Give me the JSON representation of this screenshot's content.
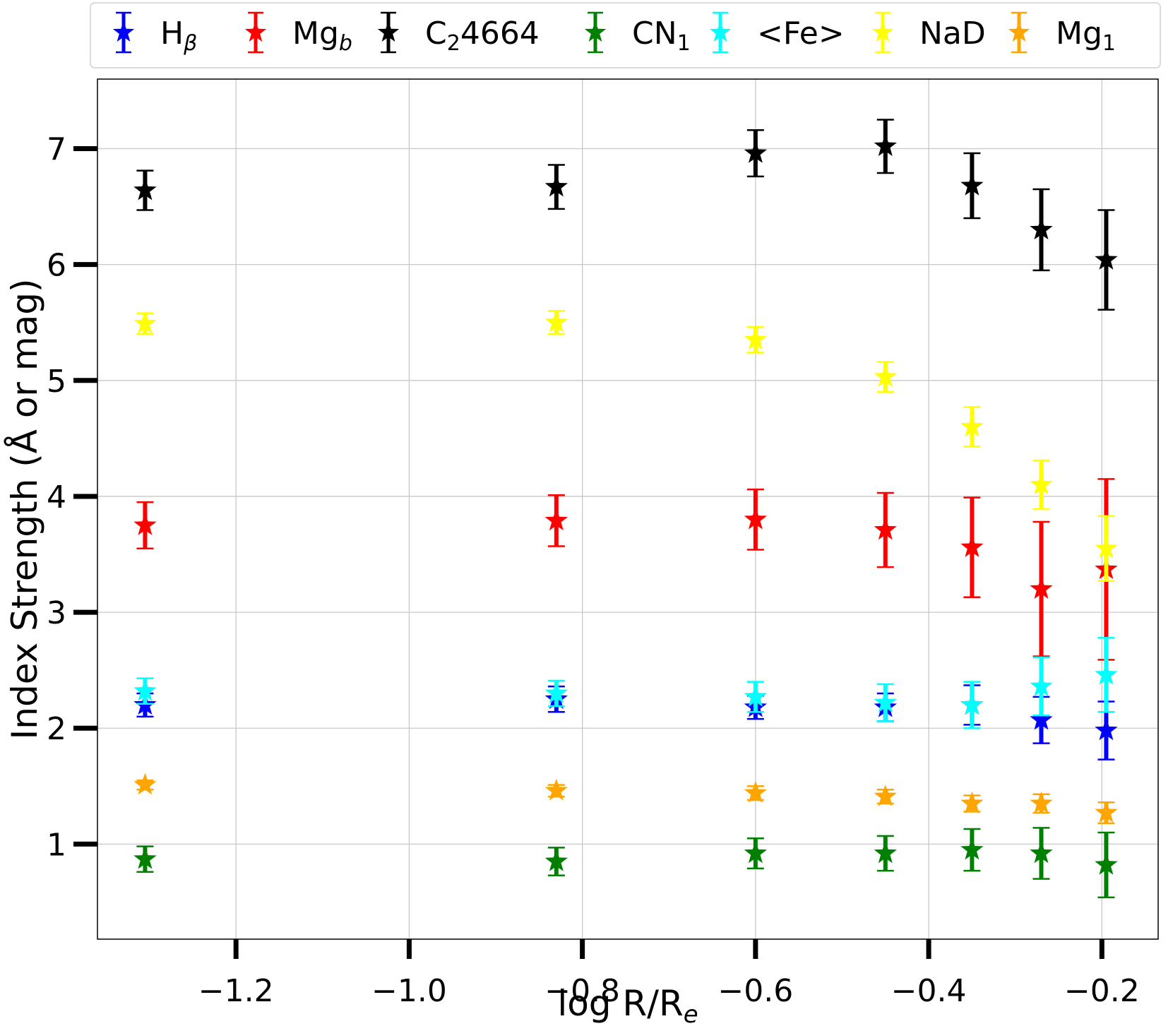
{
  "chart_data": {
    "type": "scatter",
    "xlabel": "log R/R_e",
    "ylabel": "Index Strength (Å or mag)",
    "xlim": [
      -1.36,
      -0.135
    ],
    "ylim": [
      0.18,
      7.6
    ],
    "xticks": [
      -1.2,
      -1.0,
      -0.8,
      -0.6,
      -0.4,
      -0.2
    ],
    "xtick_labels": [
      "−1.2",
      "−1.0",
      "−0.8",
      "−0.6",
      "−0.4",
      "−0.2"
    ],
    "yticks": [
      1,
      2,
      3,
      4,
      5,
      6,
      7
    ],
    "ytick_labels": [
      "1",
      "2",
      "3",
      "4",
      "5",
      "6",
      "7"
    ],
    "grid": true,
    "legend_position": "top",
    "x": [
      -1.305,
      -0.83,
      -0.6,
      -0.45,
      -0.35,
      -0.27,
      -0.195
    ],
    "series": [
      {
        "name": "Hβ",
        "label_main": "H",
        "label_sub": "β",
        "sub_italic": true,
        "color": "#0000ff",
        "values": [
          2.2,
          2.25,
          2.18,
          2.18,
          2.2,
          2.07,
          1.98
        ],
        "errors": [
          0.1,
          0.11,
          0.1,
          0.12,
          0.17,
          0.2,
          0.25
        ]
      },
      {
        "name": "Mgb",
        "label_main": "Mg",
        "label_sub": "b",
        "sub_italic": true,
        "color": "#ff0000",
        "values": [
          3.75,
          3.79,
          3.8,
          3.71,
          3.56,
          3.2,
          3.37
        ],
        "errors": [
          0.2,
          0.22,
          0.26,
          0.32,
          0.43,
          0.58,
          0.78
        ]
      },
      {
        "name": "C24664",
        "label_main": "C",
        "label_sub": "2",
        "label_after": "4664",
        "sub_italic": false,
        "color": "#000000",
        "values": [
          6.64,
          6.67,
          6.96,
          7.02,
          6.68,
          6.3,
          6.04
        ],
        "errors": [
          0.17,
          0.19,
          0.2,
          0.23,
          0.28,
          0.35,
          0.43
        ]
      },
      {
        "name": "CN1",
        "label_main": "CN",
        "label_sub": "1",
        "sub_italic": false,
        "color": "#008000",
        "values": [
          0.87,
          0.85,
          0.92,
          0.92,
          0.95,
          0.92,
          0.82
        ],
        "errors": [
          0.11,
          0.12,
          0.13,
          0.15,
          0.18,
          0.22,
          0.28
        ]
      },
      {
        "name": "<Fe>",
        "label_main": "<Fe>",
        "color": "#00ffff",
        "values": [
          2.32,
          2.3,
          2.27,
          2.22,
          2.2,
          2.36,
          2.46
        ],
        "errors": [
          0.11,
          0.11,
          0.13,
          0.16,
          0.2,
          0.25,
          0.32
        ]
      },
      {
        "name": "NaD",
        "label_main": "NaD",
        "color": "#ffff00",
        "values": [
          5.49,
          5.5,
          5.35,
          5.03,
          4.6,
          4.1,
          3.55
        ],
        "errors": [
          0.09,
          0.1,
          0.11,
          0.13,
          0.17,
          0.21,
          0.28
        ]
      },
      {
        "name": "Mg1",
        "label_main": "Mg",
        "label_sub": "1",
        "sub_italic": false,
        "color": "#ffa500",
        "values": [
          1.51,
          1.46,
          1.44,
          1.41,
          1.35,
          1.35,
          1.27
        ],
        "errors": [
          0.04,
          0.05,
          0.06,
          0.06,
          0.07,
          0.08,
          0.09
        ]
      }
    ]
  }
}
